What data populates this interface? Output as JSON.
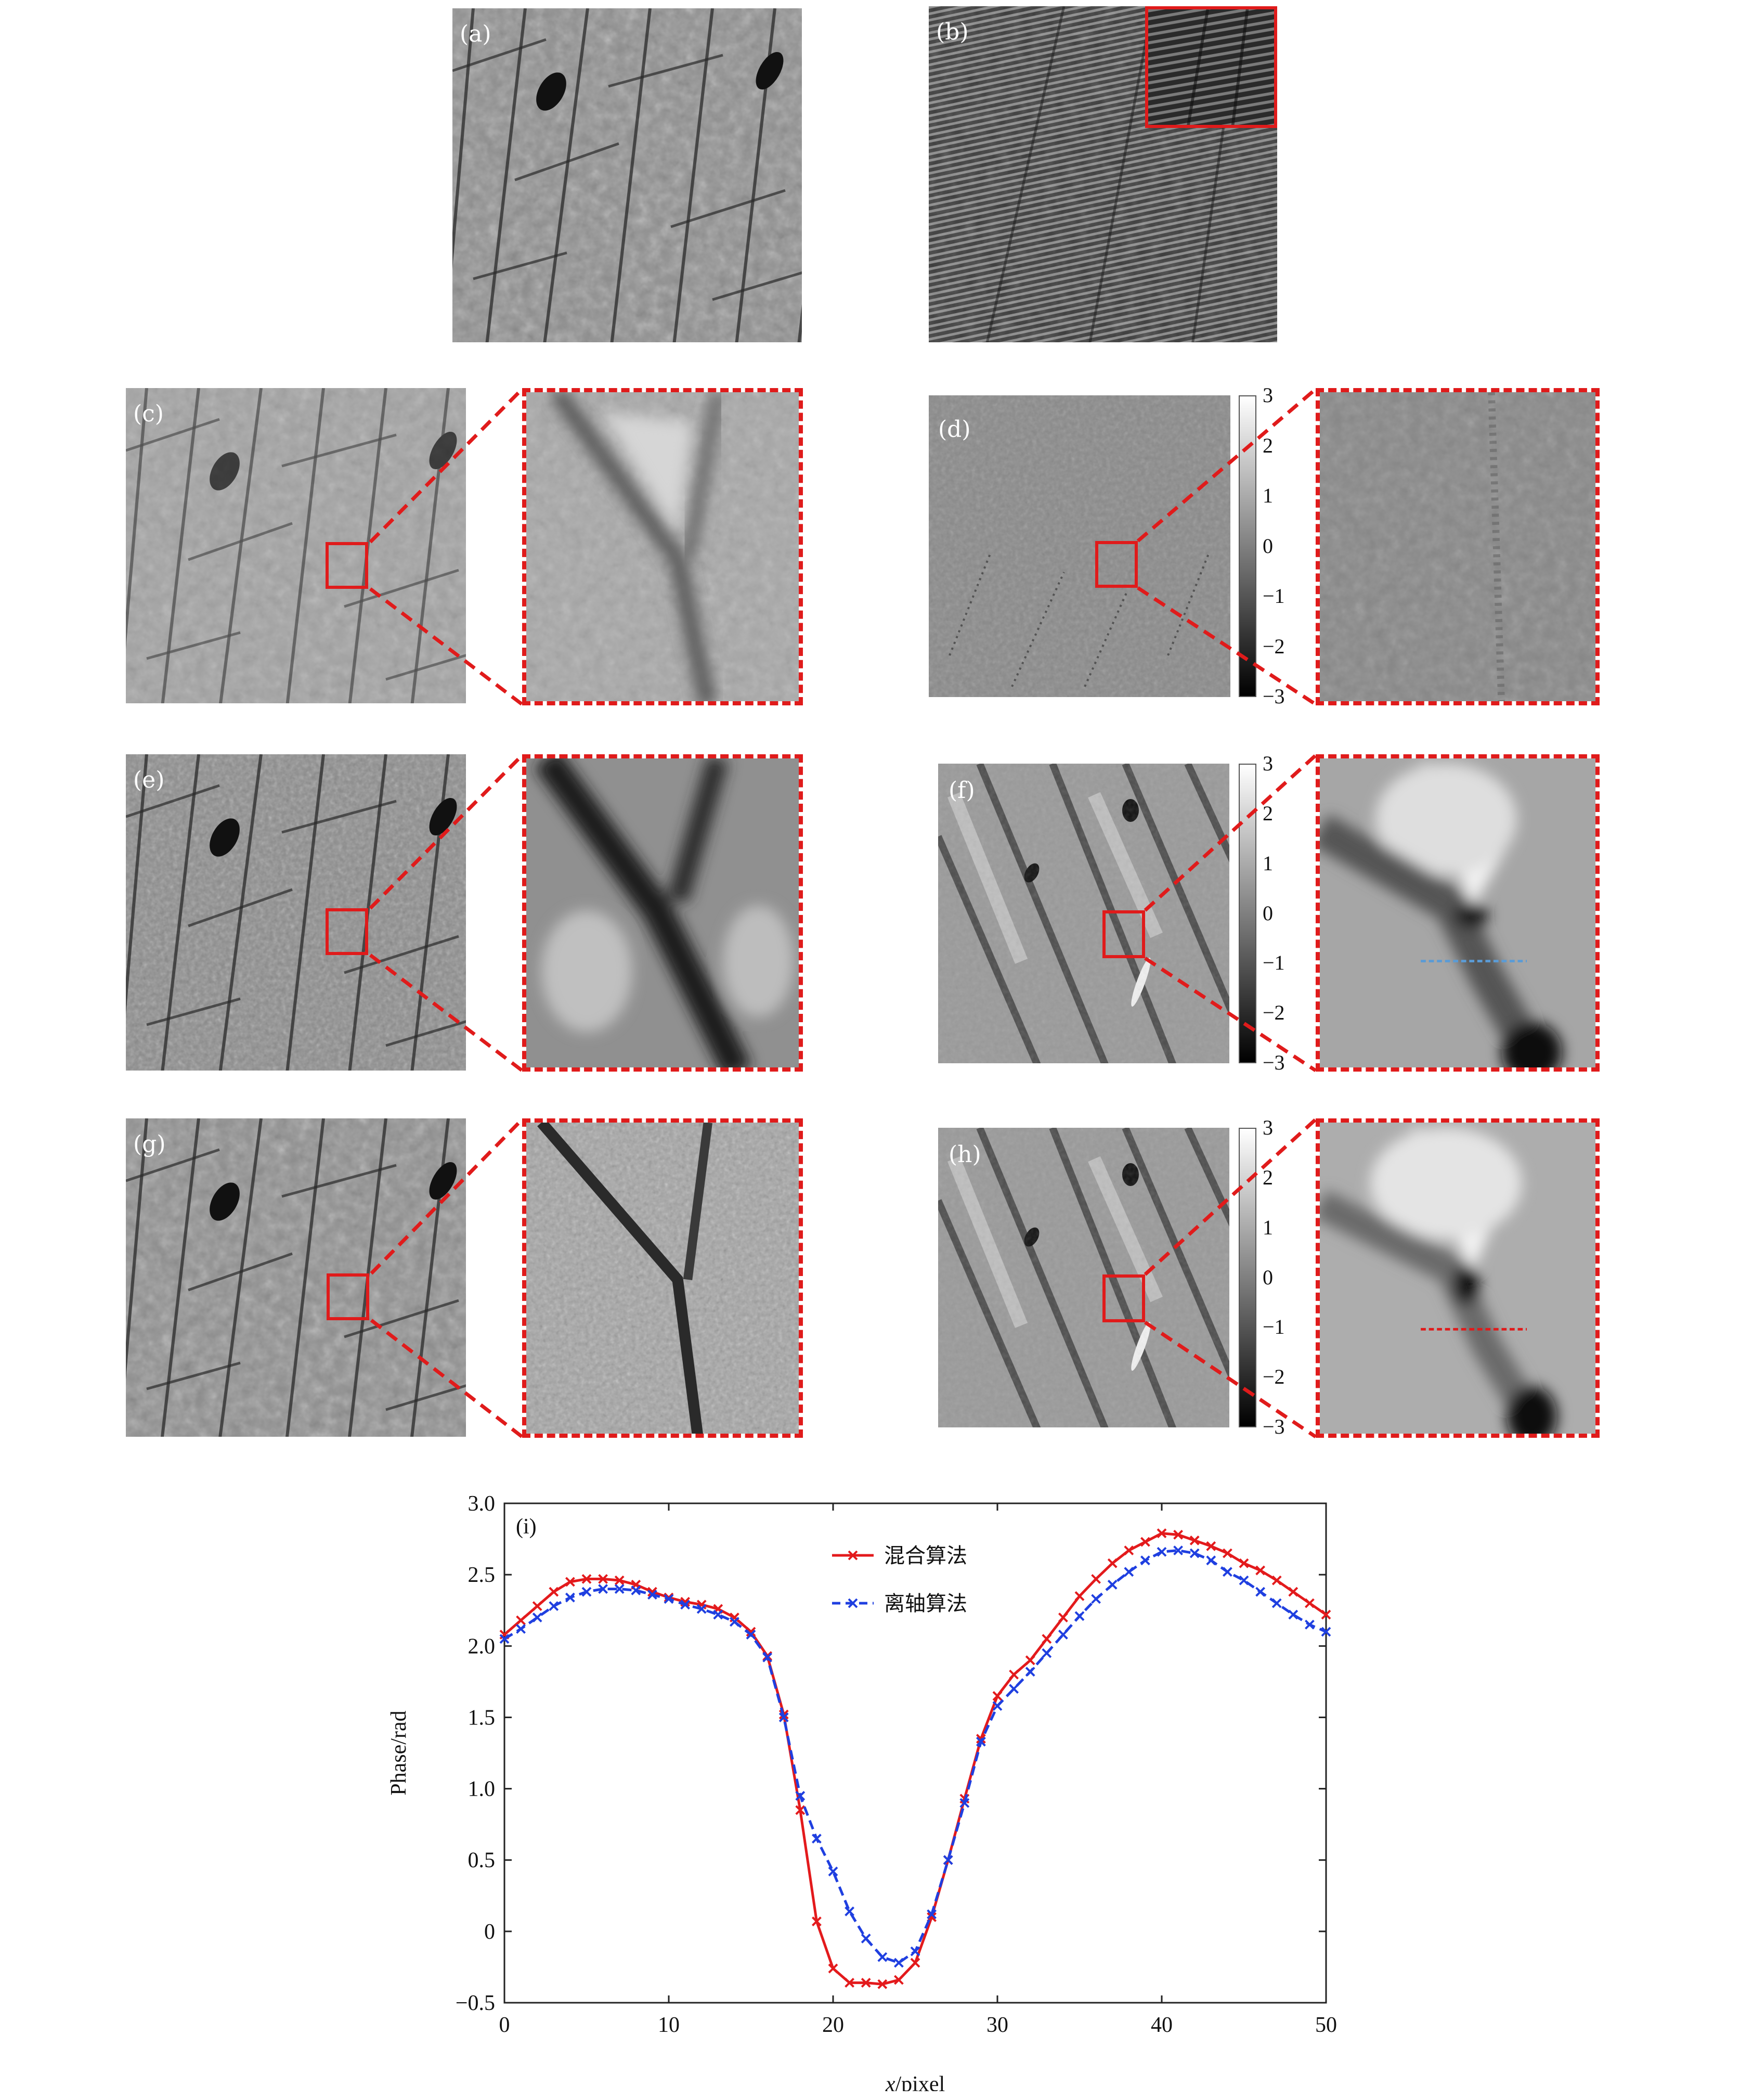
{
  "panels": {
    "a": "(a)",
    "b": "(b)",
    "c": "(c)",
    "d": "(d)",
    "e": "(e)",
    "f": "(f)",
    "g": "(g)",
    "h": "(h)",
    "i": "(i)"
  },
  "colorbar_ticks": [
    "3",
    "2",
    "1",
    "0",
    "−1",
    "−2",
    "−3"
  ],
  "colors": {
    "accent_red": "#e01b1b",
    "series_red": "#e31a1c",
    "series_blue": "#1f3fe0",
    "line_blue": "#5b9bd5"
  },
  "chart_data": {
    "type": "line",
    "panel": "(i)",
    "xlabel": "x/pixel",
    "ylabel": "Phase/rad",
    "xlim": [
      0,
      50
    ],
    "ylim": [
      -0.5,
      3.0
    ],
    "xticks": [
      "0",
      "10",
      "20",
      "30",
      "40",
      "50"
    ],
    "yticks": [
      "−0.5",
      "0",
      "0.5",
      "1.0",
      "1.5",
      "2.0",
      "2.5",
      "3.0"
    ],
    "legend_position": "top-center",
    "series": [
      {
        "name": "混合算法",
        "color": "#e31a1c",
        "style": "solid-marker-x",
        "x": [
          0,
          1,
          2,
          3,
          4,
          5,
          6,
          7,
          8,
          9,
          10,
          11,
          12,
          13,
          14,
          15,
          16,
          17,
          18,
          19,
          20,
          21,
          22,
          23,
          24,
          25,
          26,
          27,
          28,
          29,
          30,
          31,
          32,
          33,
          34,
          35,
          36,
          37,
          38,
          39,
          40,
          41,
          42,
          43,
          44,
          45,
          46,
          47,
          48,
          49,
          50
        ],
        "y": [
          2.08,
          2.18,
          2.28,
          2.38,
          2.45,
          2.47,
          2.47,
          2.46,
          2.43,
          2.38,
          2.34,
          2.31,
          2.29,
          2.26,
          2.2,
          2.1,
          1.93,
          1.52,
          0.85,
          0.07,
          -0.26,
          -0.36,
          -0.36,
          -0.37,
          -0.34,
          -0.22,
          0.1,
          0.5,
          0.93,
          1.35,
          1.65,
          1.8,
          1.9,
          2.05,
          2.2,
          2.35,
          2.47,
          2.58,
          2.67,
          2.73,
          2.79,
          2.78,
          2.74,
          2.7,
          2.65,
          2.58,
          2.53,
          2.46,
          2.38,
          2.3,
          2.22
        ]
      },
      {
        "name": "离轴算法",
        "color": "#1f3fe0",
        "style": "dashed-marker-x",
        "x": [
          0,
          1,
          2,
          3,
          4,
          5,
          6,
          7,
          8,
          9,
          10,
          11,
          12,
          13,
          14,
          15,
          16,
          17,
          18,
          19,
          20,
          21,
          22,
          23,
          24,
          25,
          26,
          27,
          28,
          29,
          30,
          31,
          32,
          33,
          34,
          35,
          36,
          37,
          38,
          39,
          40,
          41,
          42,
          43,
          44,
          45,
          46,
          47,
          48,
          49,
          50
        ],
        "y": [
          2.05,
          2.12,
          2.2,
          2.28,
          2.34,
          2.38,
          2.4,
          2.4,
          2.39,
          2.36,
          2.33,
          2.29,
          2.26,
          2.22,
          2.17,
          2.08,
          1.92,
          1.5,
          0.95,
          0.65,
          0.42,
          0.14,
          -0.05,
          -0.18,
          -0.22,
          -0.14,
          0.12,
          0.5,
          0.9,
          1.33,
          1.58,
          1.7,
          1.82,
          1.95,
          2.08,
          2.21,
          2.33,
          2.43,
          2.52,
          2.6,
          2.66,
          2.67,
          2.65,
          2.6,
          2.52,
          2.46,
          2.38,
          2.3,
          2.22,
          2.15,
          2.1
        ]
      }
    ]
  }
}
